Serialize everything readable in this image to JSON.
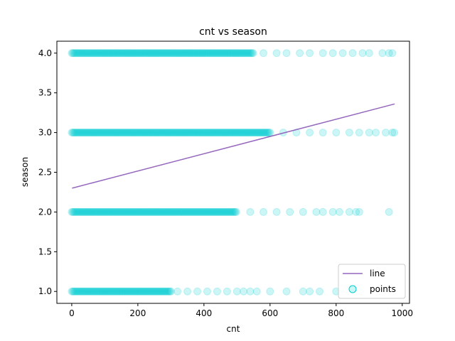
{
  "chart_data": {
    "type": "scatter",
    "title": "cnt vs season",
    "xlabel": "cnt",
    "ylabel": "season",
    "xlim": [
      -45,
      1022
    ],
    "ylim": [
      0.85,
      4.15
    ],
    "xticks": [
      0,
      200,
      400,
      600,
      800,
      1000
    ],
    "yticks": [
      1.0,
      1.5,
      2.0,
      2.5,
      3.0,
      3.5,
      4.0
    ],
    "xtick_labels": [
      "0",
      "200",
      "400",
      "600",
      "800",
      "1000"
    ],
    "ytick_labels": [
      "1.0",
      "1.5",
      "2.0",
      "2.5",
      "3.0",
      "3.5",
      "4.0"
    ],
    "grid": false,
    "legend_position": "bottom-right",
    "legend": [
      "line",
      "points"
    ],
    "colors": {
      "line": "#9467bd",
      "points": "#00ced1"
    },
    "series": [
      {
        "name": "points",
        "kind": "scatter",
        "groups": [
          {
            "y": 1,
            "dense_max": 300,
            "sparse": [
              320,
              350,
              380,
              410,
              440,
              470,
              500,
              520,
              540,
              560,
              600,
              650,
              700,
              720,
              750,
              800
            ]
          },
          {
            "y": 2,
            "dense_max": 500,
            "sparse": [
              540,
              580,
              620,
              660,
              700,
              740,
              760,
              790,
              810,
              840,
              860,
              870,
              960
            ]
          },
          {
            "y": 3,
            "dense_max": 600,
            "sparse": [
              640,
              680,
              720,
              760,
              800,
              840,
              870,
              900,
              920,
              950,
              970,
              976
            ]
          },
          {
            "y": 4,
            "dense_max": 550,
            "sparse": [
              580,
              620,
              650,
              690,
              720,
              760,
              790,
              820,
              850,
              880,
              900,
              940,
              960,
              970
            ]
          }
        ]
      },
      {
        "name": "line",
        "kind": "line",
        "x": [
          1,
          977
        ],
        "y": [
          2.3,
          3.36
        ]
      }
    ]
  }
}
